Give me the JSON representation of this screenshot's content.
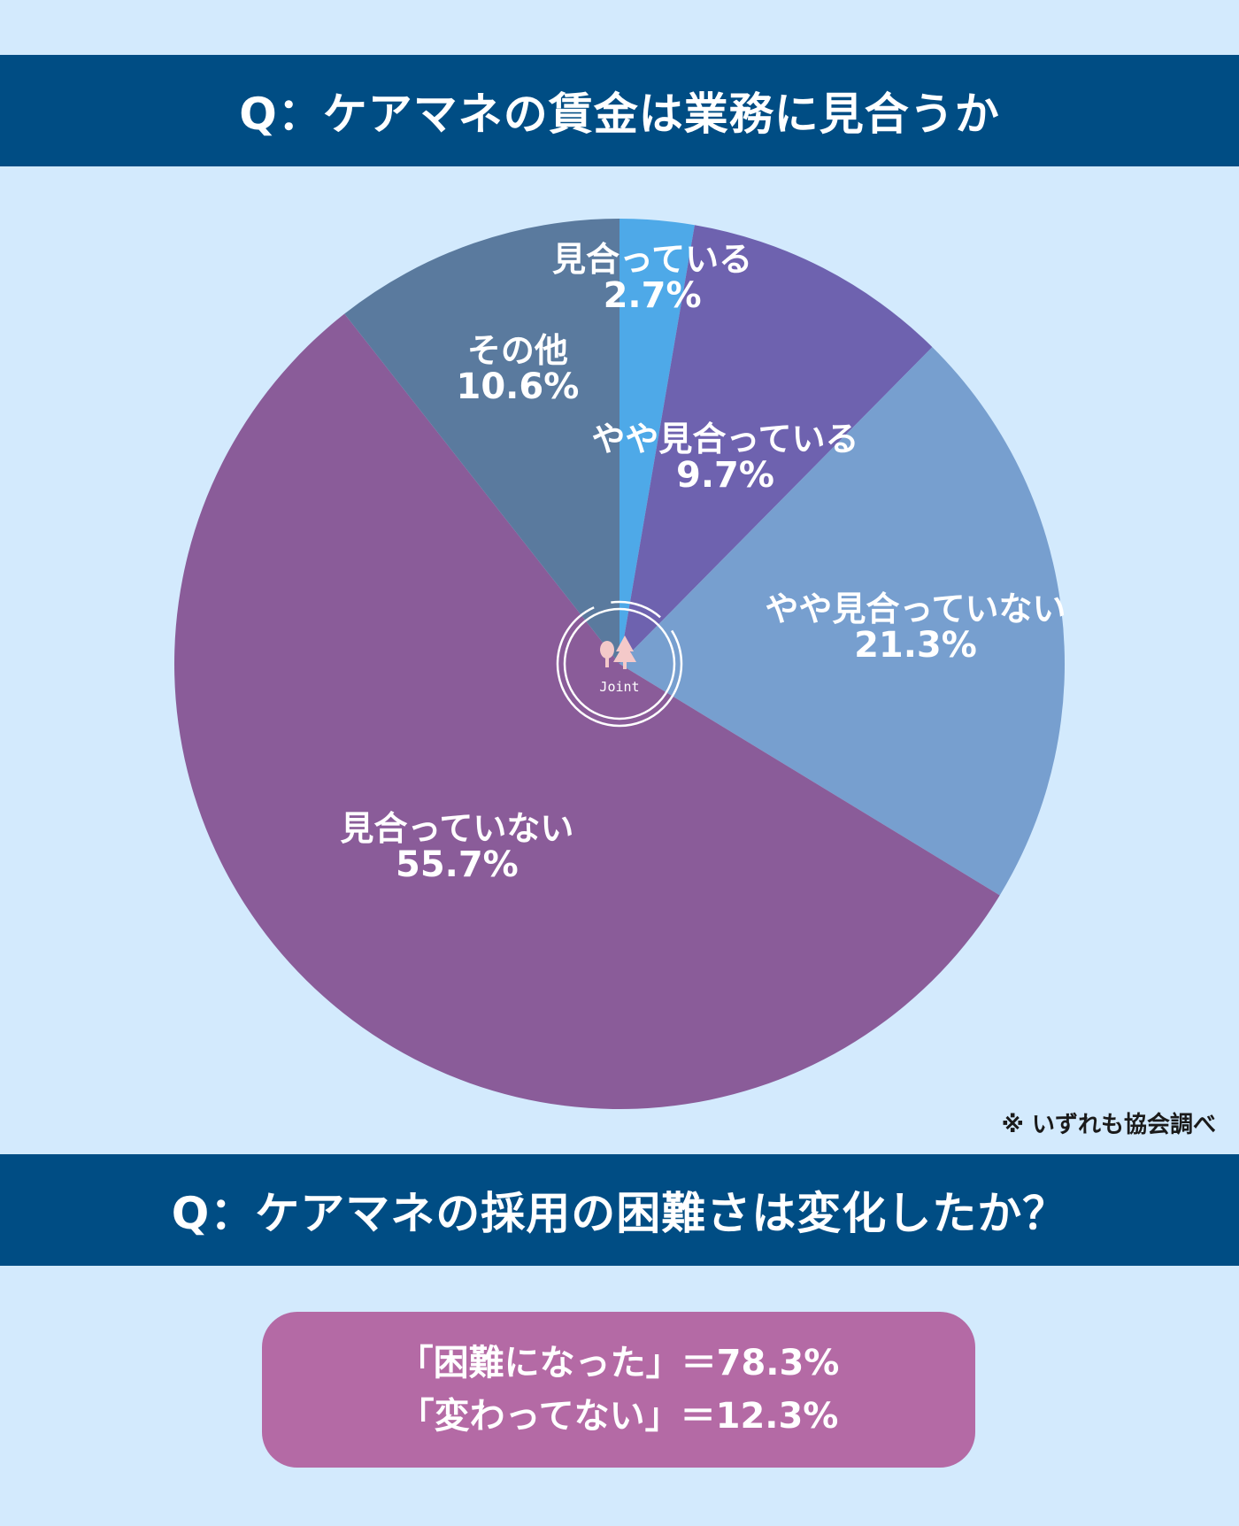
{
  "header1": {
    "title": "Q：ケアマネの賃金は業務に見合うか"
  },
  "header2": {
    "title": "Q：ケアマネの採用の困難さは変化したか？"
  },
  "logo": {
    "text": "Joint",
    "icon": "trees-icon"
  },
  "footnote": "※ いずれも協会調べ",
  "chart_data": {
    "type": "pie",
    "unit": "%",
    "slices": [
      {
        "label": "見合っている",
        "value": 2.7,
        "value_label": "2.7%",
        "color": "#4ea9e8"
      },
      {
        "label": "やや見合っている",
        "value": 9.7,
        "value_label": "9.7%",
        "color": "#6e62af"
      },
      {
        "label": "やや見合っていない",
        "value": 21.3,
        "value_label": "21.3%",
        "color": "#779fcf"
      },
      {
        "label": "見合っていない",
        "value": 55.7,
        "value_label": "55.7%",
        "color": "#8a5c99"
      },
      {
        "label": "その他",
        "value": 10.6,
        "value_label": "10.6%",
        "color": "#5a7a9e"
      }
    ]
  },
  "results": [
    {
      "text": "「困難になった」＝78.3%",
      "value": 78.3
    },
    {
      "text": "「変わってない」＝12.3%",
      "value": 12.3
    }
  ]
}
